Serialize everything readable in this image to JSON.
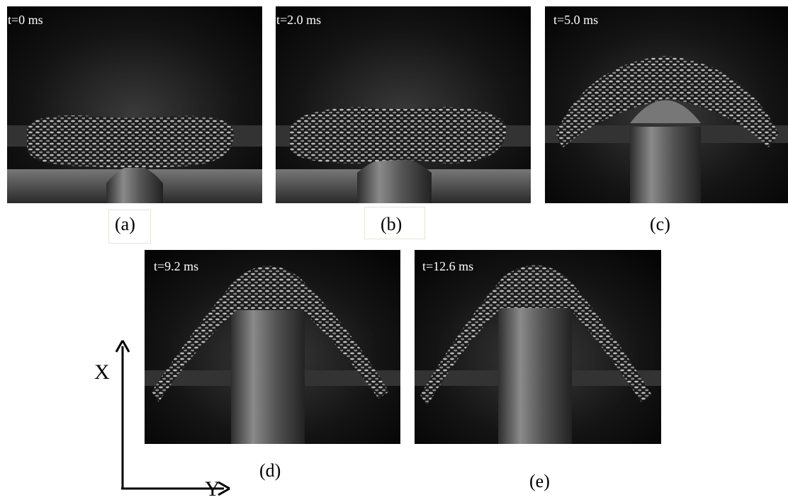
{
  "panels": [
    {
      "time": "t=0 ms",
      "label": "(a)"
    },
    {
      "time": "t=2.0 ms",
      "label": "(b)"
    },
    {
      "time": "t=5.0 ms",
      "label": "(c)"
    },
    {
      "time": "t=9.2 ms",
      "label": "(d)"
    },
    {
      "time": "t=12.6 ms",
      "label": "(e)"
    }
  ],
  "axes": {
    "vertical": "X",
    "horizontal": "Y"
  }
}
